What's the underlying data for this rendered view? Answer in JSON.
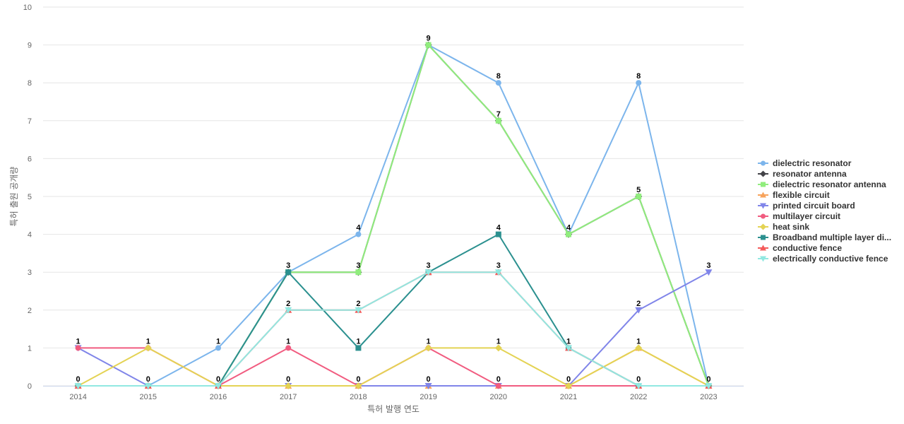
{
  "chart_data": {
    "type": "line",
    "title": "",
    "xlabel": "특허 발행 연도",
    "ylabel": "특허 출원 공개량",
    "x": [
      "2014",
      "2015",
      "2016",
      "2017",
      "2018",
      "2019",
      "2020",
      "2021",
      "2022",
      "2023"
    ],
    "ylim": [
      0,
      10
    ],
    "yticks": [
      0,
      1,
      2,
      3,
      4,
      5,
      6,
      7,
      8,
      9,
      10
    ],
    "grid": true,
    "legend_position": "right",
    "series": [
      {
        "name": "dielectric resonator",
        "color": "#7cb5ec",
        "marker": "circle",
        "values": [
          0,
          0,
          1,
          3,
          4,
          9,
          8,
          4,
          8,
          0
        ]
      },
      {
        "name": "resonator antenna",
        "color": "#434348",
        "marker": "diamond",
        "values": [
          0,
          0,
          0,
          3,
          3,
          9,
          7,
          4,
          5,
          0
        ]
      },
      {
        "name": "dielectric resonator antenna",
        "color": "#90ed7d",
        "marker": "square",
        "values": [
          0,
          0,
          0,
          3,
          3,
          9,
          7,
          4,
          5,
          0
        ]
      },
      {
        "name": "flexible circuit",
        "color": "#f7a35c",
        "marker": "triangle",
        "values": [
          0,
          0,
          0,
          0,
          0,
          0,
          0,
          0,
          1,
          0
        ]
      },
      {
        "name": "printed circuit board",
        "color": "#8085e9",
        "marker": "triangle-down",
        "values": [
          1,
          0,
          0,
          0,
          0,
          0,
          0,
          0,
          2,
          3
        ]
      },
      {
        "name": "multilayer circuit",
        "color": "#f15c80",
        "marker": "circle",
        "values": [
          1,
          1,
          0,
          1,
          0,
          1,
          0,
          0,
          0,
          0
        ]
      },
      {
        "name": "heat sink",
        "color": "#e4d354",
        "marker": "diamond",
        "values": [
          0,
          1,
          0,
          0,
          0,
          1,
          1,
          0,
          1,
          0
        ]
      },
      {
        "name": "Broadband multiple layer di...",
        "color": "#2b908f",
        "marker": "square",
        "values": [
          0,
          0,
          0,
          3,
          1,
          3,
          4,
          1,
          0,
          0
        ]
      },
      {
        "name": "conductive fence",
        "color": "#f45b5b",
        "marker": "triangle",
        "values": [
          0,
          0,
          0,
          2,
          2,
          3,
          3,
          1,
          0,
          0
        ]
      },
      {
        "name": "electrically conductive fence",
        "color": "#91e8e1",
        "marker": "triangle-down",
        "values": [
          0,
          0,
          0,
          2,
          2,
          3,
          3,
          1,
          0,
          0
        ]
      }
    ],
    "data_labels": [
      {
        "x": "2014",
        "value": 1
      },
      {
        "x": "2014",
        "value": 0
      },
      {
        "x": "2015",
        "value": 1
      },
      {
        "x": "2015",
        "value": 0
      },
      {
        "x": "2016",
        "value": 1
      },
      {
        "x": "2016",
        "value": 0
      },
      {
        "x": "2017",
        "value": 3
      },
      {
        "x": "2017",
        "value": 2
      },
      {
        "x": "2017",
        "value": 1
      },
      {
        "x": "2017",
        "value": 0
      },
      {
        "x": "2018",
        "value": 4
      },
      {
        "x": "2018",
        "value": 3
      },
      {
        "x": "2018",
        "value": 2
      },
      {
        "x": "2018",
        "value": 1
      },
      {
        "x": "2018",
        "value": 0
      },
      {
        "x": "2019",
        "value": 9
      },
      {
        "x": "2019",
        "value": 3
      },
      {
        "x": "2019",
        "value": 1
      },
      {
        "x": "2019",
        "value": 0
      },
      {
        "x": "2020",
        "value": 8
      },
      {
        "x": "2020",
        "value": 7
      },
      {
        "x": "2020",
        "value": 4
      },
      {
        "x": "2020",
        "value": 3
      },
      {
        "x": "2020",
        "value": 1
      },
      {
        "x": "2020",
        "value": 0
      },
      {
        "x": "2021",
        "value": 4
      },
      {
        "x": "2021",
        "value": 1
      },
      {
        "x": "2021",
        "value": 0
      },
      {
        "x": "2022",
        "value": 8
      },
      {
        "x": "2022",
        "value": 5
      },
      {
        "x": "2022",
        "value": 2
      },
      {
        "x": "2022",
        "value": 1
      },
      {
        "x": "2022",
        "value": 0
      },
      {
        "x": "2023",
        "value": 3
      },
      {
        "x": "2023",
        "value": 0
      }
    ]
  }
}
